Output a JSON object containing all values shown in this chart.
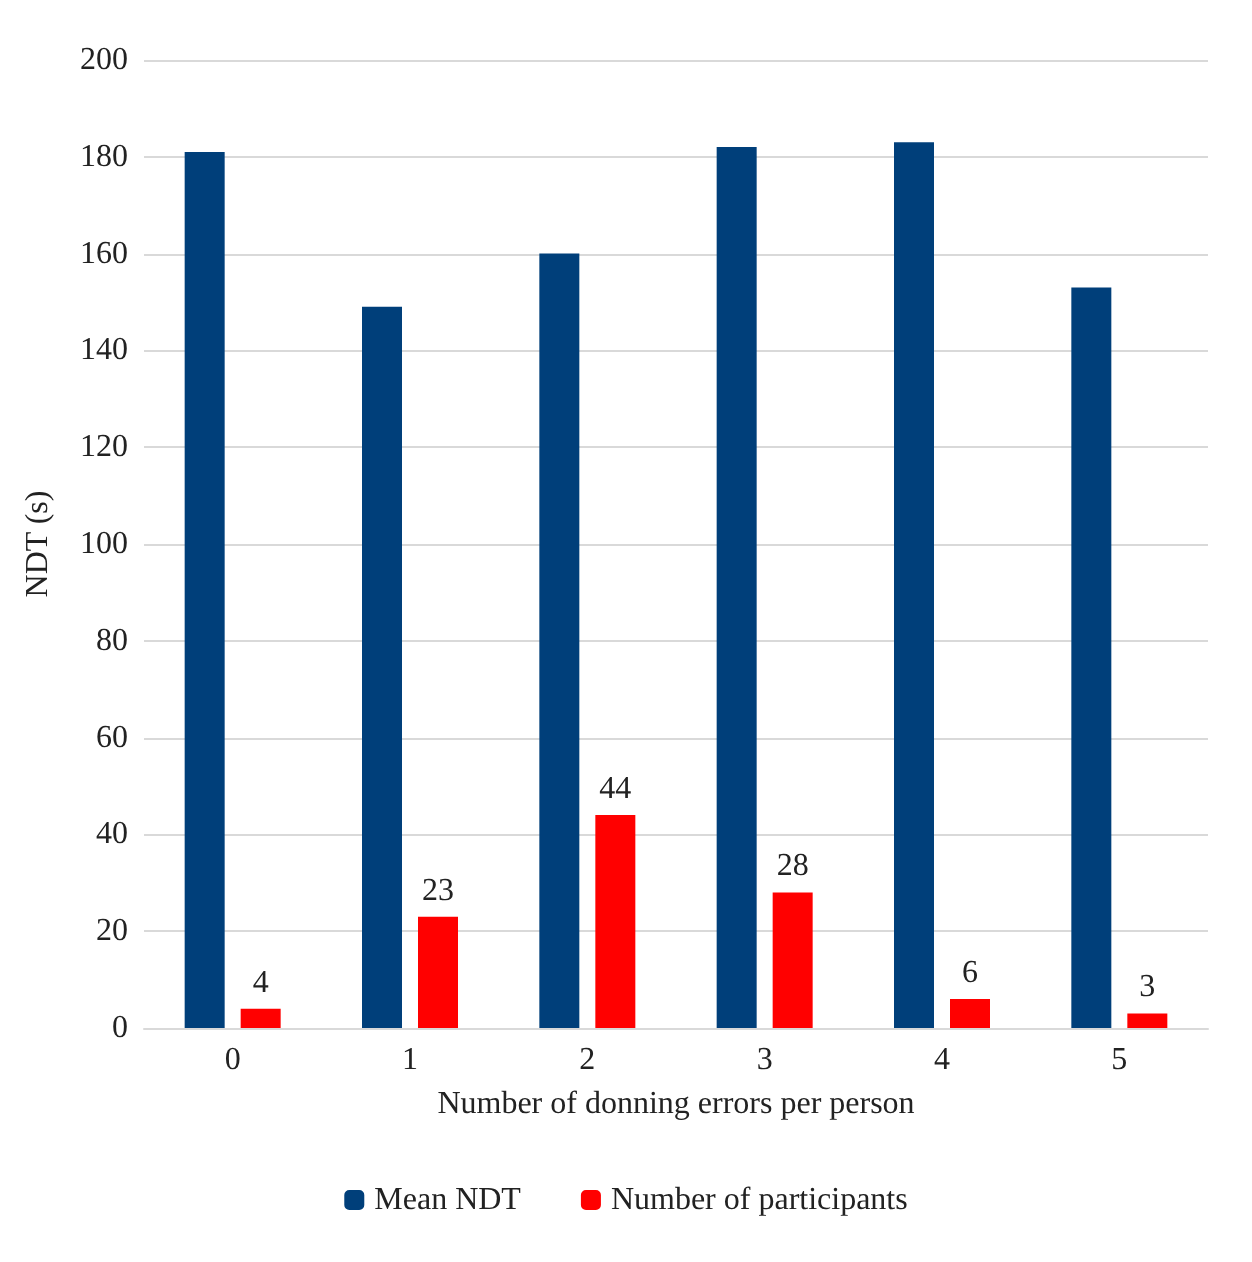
{
  "chart_data": {
    "type": "bar",
    "xlabel": "Number of donning errors per person",
    "ylabel": "NDT (s)",
    "categories": [
      "0",
      "1",
      "2",
      "3",
      "4",
      "5"
    ],
    "series": [
      {
        "name": "Mean NDT",
        "color": "#003f7a",
        "values": [
          181,
          149,
          160,
          182,
          183,
          153
        ]
      },
      {
        "name": "Number of participants",
        "color": "#ff0000",
        "values": [
          4,
          23,
          44,
          28,
          6,
          3
        ],
        "value_labels": [
          "4",
          "23",
          "44",
          "28",
          "6",
          "3"
        ]
      }
    ],
    "ylim": [
      0,
      200
    ],
    "yticks": [
      0,
      20,
      40,
      60,
      80,
      100,
      120,
      140,
      160,
      180,
      200
    ],
    "grid": "y",
    "legend": "bottom"
  }
}
